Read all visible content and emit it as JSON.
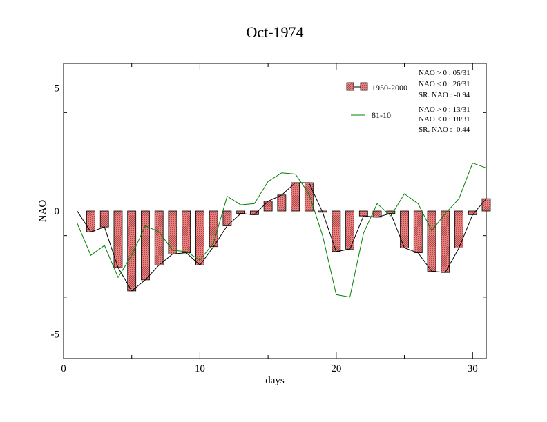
{
  "chart_data": {
    "type": "bar",
    "title": "Oct-1974",
    "xlabel": "days",
    "ylabel": "NAO",
    "xlim": [
      0,
      31
    ],
    "ylim": [
      -6,
      6
    ],
    "x_ticks": [
      0,
      10,
      20,
      30
    ],
    "x_tick_labels": [
      "0",
      "10",
      "20",
      "30"
    ],
    "y_ticks": [
      -5,
      0,
      5
    ],
    "y_tick_labels": [
      "-5",
      "0",
      "5"
    ],
    "grid": false,
    "legend_position": "top-right",
    "days": [
      1,
      2,
      3,
      4,
      5,
      6,
      7,
      8,
      9,
      10,
      11,
      12,
      13,
      14,
      15,
      16,
      17,
      18,
      19,
      20,
      21,
      22,
      23,
      24,
      25,
      26,
      27,
      28,
      29,
      30,
      31
    ],
    "series": [
      {
        "name": "1950-2000",
        "style": "bar",
        "color": "#f08080",
        "values": [
          0.0,
          -0.85,
          -0.65,
          -2.3,
          -3.25,
          -2.8,
          -2.2,
          -1.75,
          -1.7,
          -2.2,
          -1.45,
          -0.6,
          -0.1,
          -0.15,
          0.4,
          0.65,
          1.15,
          1.15,
          -0.05,
          -1.65,
          -1.55,
          -0.2,
          -0.25,
          -0.1,
          -1.5,
          -1.7,
          -2.45,
          -2.5,
          -1.5,
          -0.15,
          0.5
        ],
        "stats": [
          "NAO > 0 : 05/31",
          "NAO < 0 : 26/31",
          "SR. NAO : -0.94"
        ]
      },
      {
        "name": "81-10",
        "style": "line",
        "color": "#008000",
        "values": [
          -0.5,
          -1.8,
          -1.4,
          -2.7,
          -1.8,
          -0.6,
          -0.85,
          -1.6,
          -1.65,
          -2.0,
          -1.3,
          0.6,
          0.25,
          0.3,
          1.2,
          1.55,
          1.5,
          0.7,
          -1.0,
          -3.4,
          -3.5,
          -0.9,
          0.3,
          -0.2,
          0.7,
          0.3,
          -0.8,
          -0.1,
          0.5,
          1.95,
          1.75
        ],
        "stats": [
          "NAO > 0 : 13/31",
          "NAO < 0 : 18/31",
          "SR. NAO : -0.44"
        ]
      }
    ]
  }
}
